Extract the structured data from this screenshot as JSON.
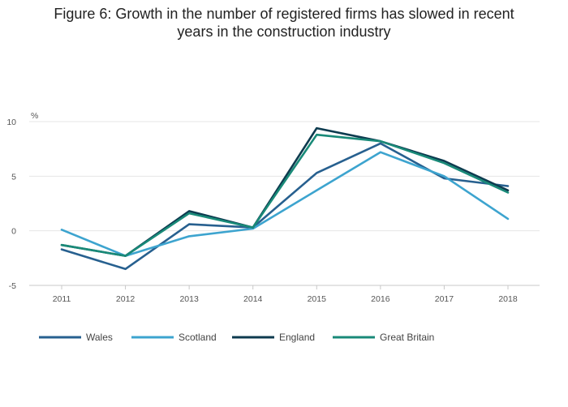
{
  "chart_data": {
    "type": "line",
    "title_lines": [
      "Figure 6: Growth in the number of registered firms has slowed in recent",
      "years in the construction industry"
    ],
    "ylabel": "%",
    "xlabel": "",
    "ylim": [
      -5,
      10
    ],
    "yticks": [
      "10",
      "5",
      "0",
      "-5"
    ],
    "ytick_values": [
      10,
      5,
      0,
      -5
    ],
    "categories": [
      "2011",
      "2012",
      "2013",
      "2014",
      "2015",
      "2016",
      "2017",
      "2018"
    ],
    "grid": true,
    "legend_position": "bottom",
    "series": [
      {
        "name": "Wales",
        "color": "#27608f",
        "values": [
          -1.7,
          -3.5,
          0.6,
          0.3,
          5.3,
          8.0,
          4.8,
          4.1
        ]
      },
      {
        "name": "Scotland",
        "color": "#3da4cf",
        "values": [
          0.1,
          -2.3,
          -0.5,
          0.2,
          3.7,
          7.2,
          5.0,
          1.1
        ]
      },
      {
        "name": "England",
        "color": "#0d3b4f",
        "values": [
          -1.3,
          -2.3,
          1.8,
          0.3,
          9.4,
          8.2,
          6.4,
          3.7
        ]
      },
      {
        "name": "Great Britain",
        "color": "#198a78",
        "values": [
          -1.3,
          -2.3,
          1.6,
          0.3,
          8.8,
          8.2,
          6.2,
          3.5
        ]
      }
    ]
  }
}
